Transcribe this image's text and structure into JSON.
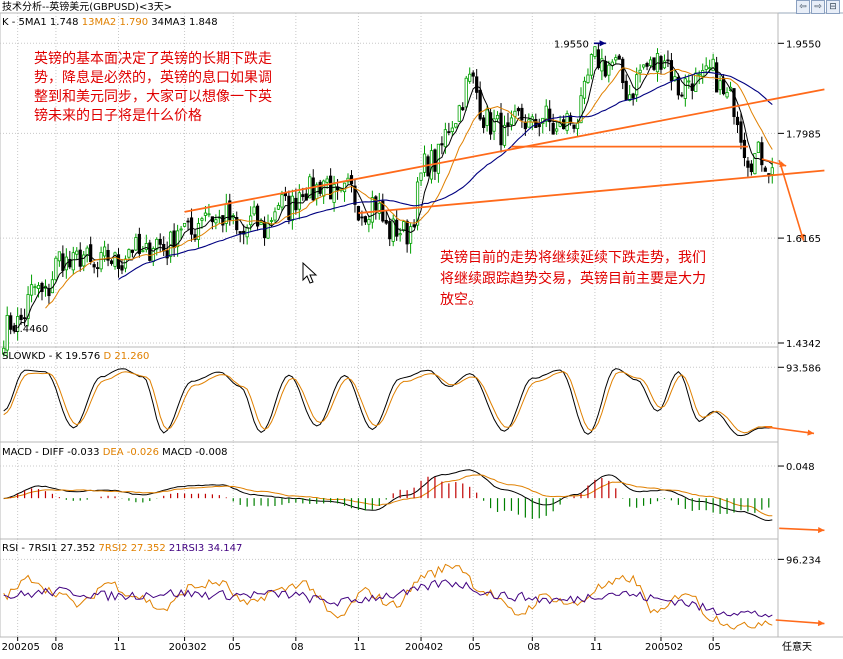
{
  "window_title": "技术分析--英镑美元(GBPUSD)<3天>",
  "nav_buttons": [
    "⇦",
    "⇨",
    "⊟"
  ],
  "colors": {
    "up": "#00a000",
    "down": "#000000",
    "ma1": "#000000",
    "ma2": "#e08000",
    "ma3": "#000080",
    "trend": "#ff6a1a",
    "annotation": "#e00000",
    "k": "#000000",
    "d": "#e08000",
    "diff": "#000000",
    "dea": "#e08000",
    "macd_pos": "#c00000",
    "macd_neg": "#008000",
    "rsi1": "#000000",
    "rsi2": "#e08000",
    "rsi3": "#400080"
  },
  "annotations": {
    "top_left": [
      "英镑的基本面决定了英镑的长期下跌走",
      "势，降息是必然的，英镑的息口如果调",
      "整到和美元同步，大家可以想像一下英",
      "镑未来的日子将是什么价格"
    ],
    "bottom_right": [
      "英镑目前的走势将继续延续下跌走势，我们",
      "将继续跟踪趋势交易，英镑目前主要是大力",
      "放空。"
    ]
  },
  "chart_data": [
    {
      "type": "candlestick",
      "panel": "price",
      "header": {
        "prefix": "K",
        "items": [
          {
            "label": "5MA1",
            "value": "1.748",
            "color": "#000000"
          },
          {
            "label": "13MA2",
            "value": "1.790",
            "color": "#e08000"
          },
          {
            "label": "34MA3",
            "value": "1.848",
            "color": "#000000"
          }
        ]
      },
      "ylim": [
        1.4342,
        1.9955
      ],
      "yticks": [
        "1.9550",
        "1.7985",
        "1.6165",
        "1.4342"
      ],
      "ytick_values": [
        1.955,
        1.7985,
        1.6165,
        1.4342
      ],
      "price_labels": [
        {
          "text": "1.9550",
          "value": 1.955,
          "x_index": 172
        },
        {
          "text": "1.4460",
          "value": 1.446,
          "x_index": 1
        }
      ],
      "close_anchors": [
        [
          0,
          1.45
        ],
        [
          10,
          1.52
        ],
        [
          18,
          1.58
        ],
        [
          28,
          1.57
        ],
        [
          36,
          1.59
        ],
        [
          44,
          1.6
        ],
        [
          52,
          1.63
        ],
        [
          60,
          1.66
        ],
        [
          68,
          1.63
        ],
        [
          74,
          1.64
        ],
        [
          82,
          1.68
        ],
        [
          90,
          1.71
        ],
        [
          98,
          1.69
        ],
        [
          106,
          1.67
        ],
        [
          114,
          1.62
        ],
        [
          124,
          1.76
        ],
        [
          134,
          1.88
        ],
        [
          142,
          1.8
        ],
        [
          152,
          1.82
        ],
        [
          162,
          1.81
        ],
        [
          172,
          1.93
        ],
        [
          180,
          1.88
        ],
        [
          188,
          1.93
        ],
        [
          196,
          1.88
        ],
        [
          202,
          1.9
        ],
        [
          208,
          1.87
        ],
        [
          214,
          1.77
        ],
        [
          220,
          1.74
        ]
      ],
      "trend_lines": [
        {
          "from": [
            52,
            1.662
          ],
          "to": [
            236,
            1.875
          ]
        },
        {
          "from": [
            102,
            1.66
          ],
          "to": [
            236,
            1.734
          ]
        },
        {
          "from": [
            146,
            1.7755
          ],
          "to": [
            214,
            1.7755
          ]
        }
      ],
      "trend_arrows": [
        {
          "from": [
            218,
            1.754
          ],
          "to": [
            225,
            1.742
          ]
        },
        {
          "from": [
            223,
            1.752
          ],
          "to": [
            230,
            1.612
          ]
        }
      ]
    },
    {
      "type": "line",
      "panel": "slowkd",
      "header": {
        "prefix": "SLOWKD",
        "items": [
          {
            "label": "K",
            "value": "19.576",
            "color": "#000000"
          },
          {
            "label": "D",
            "value": "21.260",
            "color": "#e08000"
          }
        ]
      },
      "ylim": [
        5,
        100
      ],
      "yticks": [
        "93.586"
      ],
      "ytick_values": [
        93.586
      ],
      "series": [
        {
          "name": "K",
          "anchors": [
            [
              0,
              40
            ],
            [
              6,
              90
            ],
            [
              12,
              88
            ],
            [
              20,
              20
            ],
            [
              28,
              82
            ],
            [
              34,
              92
            ],
            [
              40,
              82
            ],
            [
              46,
              14
            ],
            [
              54,
              76
            ],
            [
              62,
              88
            ],
            [
              68,
              70
            ],
            [
              74,
              14
            ],
            [
              82,
              84
            ],
            [
              90,
              22
            ],
            [
              98,
              84
            ],
            [
              106,
              18
            ],
            [
              114,
              80
            ],
            [
              122,
              90
            ],
            [
              128,
              70
            ],
            [
              134,
              86
            ],
            [
              144,
              16
            ],
            [
              152,
              80
            ],
            [
              160,
              90
            ],
            [
              168,
              12
            ],
            [
              176,
              92
            ],
            [
              182,
              78
            ],
            [
              188,
              40
            ],
            [
              194,
              88
            ],
            [
              200,
              28
            ],
            [
              204,
              40
            ],
            [
              212,
              10
            ],
            [
              218,
              19.576
            ]
          ]
        },
        {
          "name": "D",
          "anchors": [
            [
              0,
              36
            ],
            [
              7,
              86
            ],
            [
              13,
              86
            ],
            [
              21,
              24
            ],
            [
              29,
              78
            ],
            [
              35,
              88
            ],
            [
              41,
              82
            ],
            [
              47,
              18
            ],
            [
              55,
              72
            ],
            [
              63,
              85
            ],
            [
              69,
              70
            ],
            [
              75,
              18
            ],
            [
              83,
              80
            ],
            [
              91,
              26
            ],
            [
              99,
              80
            ],
            [
              107,
              22
            ],
            [
              115,
              76
            ],
            [
              123,
              86
            ],
            [
              129,
              72
            ],
            [
              135,
              82
            ],
            [
              145,
              20
            ],
            [
              153,
              76
            ],
            [
              161,
              88
            ],
            [
              169,
              16
            ],
            [
              177,
              88
            ],
            [
              183,
              80
            ],
            [
              189,
              44
            ],
            [
              195,
              84
            ],
            [
              201,
              32
            ],
            [
              205,
              40
            ],
            [
              213,
              14
            ],
            [
              218,
              21.26
            ]
          ]
        }
      ],
      "trend_arrows": [
        {
          "from": [
            219,
            21
          ],
          "to": [
            233,
            13
          ]
        }
      ]
    },
    {
      "type": "line+bar",
      "panel": "macd",
      "header": {
        "prefix": "MACD",
        "items": [
          {
            "label": "DIFF",
            "value": "-0.033",
            "color": "#000000"
          },
          {
            "label": "DEA",
            "value": "-0.026",
            "color": "#e08000"
          },
          {
            "label": "MACD",
            "value": "-0.008",
            "color": "#000000"
          }
        ]
      },
      "ylim": [
        -0.058,
        0.06
      ],
      "yticks": [
        "0.048"
      ],
      "ytick_values": [
        0.048
      ],
      "series": [
        {
          "name": "DIFF",
          "anchors": [
            [
              0,
              0.0
            ],
            [
              10,
              0.018
            ],
            [
              20,
              0.01
            ],
            [
              30,
              0.012
            ],
            [
              40,
              0.005
            ],
            [
              52,
              0.018
            ],
            [
              62,
              0.02
            ],
            [
              72,
              0.005
            ],
            [
              82,
              0.0
            ],
            [
              94,
              -0.005
            ],
            [
              106,
              -0.018
            ],
            [
              116,
              0.005
            ],
            [
              126,
              0.035
            ],
            [
              134,
              0.042
            ],
            [
              144,
              0.012
            ],
            [
              156,
              -0.01
            ],
            [
              164,
              0.005
            ],
            [
              174,
              0.035
            ],
            [
              182,
              0.01
            ],
            [
              190,
              0.012
            ],
            [
              200,
              -0.005
            ],
            [
              212,
              -0.02
            ],
            [
              220,
              -0.033
            ]
          ]
        },
        {
          "name": "DEA",
          "anchors": [
            [
              0,
              0.0
            ],
            [
              12,
              0.012
            ],
            [
              22,
              0.012
            ],
            [
              32,
              0.01
            ],
            [
              42,
              0.008
            ],
            [
              54,
              0.015
            ],
            [
              64,
              0.018
            ],
            [
              74,
              0.01
            ],
            [
              84,
              0.003
            ],
            [
              96,
              -0.002
            ],
            [
              108,
              -0.01
            ],
            [
              118,
              0.0
            ],
            [
              128,
              0.025
            ],
            [
              136,
              0.035
            ],
            [
              146,
              0.02
            ],
            [
              158,
              0.002
            ],
            [
              166,
              0.004
            ],
            [
              176,
              0.024
            ],
            [
              184,
              0.016
            ],
            [
              192,
              0.012
            ],
            [
              202,
              0.003
            ],
            [
              214,
              -0.012
            ],
            [
              220,
              -0.026
            ]
          ]
        }
      ],
      "trend_arrows": [
        {
          "from": [
            223,
            -0.045
          ],
          "to": [
            236,
            -0.048
          ]
        }
      ]
    },
    {
      "type": "line",
      "panel": "rsi",
      "header": {
        "prefix": "RSI",
        "items": [
          {
            "label": "7RSI1",
            "value": "27.352",
            "color": "#000000"
          },
          {
            "label": "7RSI2",
            "value": "27.352",
            "color": "#e08000"
          },
          {
            "label": "21RSI3",
            "value": "34.147",
            "color": "#400080"
          }
        ]
      },
      "ylim": [
        10,
        100
      ],
      "yticks": [
        "96.234"
      ],
      "ytick_values": [
        96.234
      ],
      "series": [
        {
          "name": "7RSI2",
          "anchors": [
            [
              0,
              55
            ],
            [
              8,
              75
            ],
            [
              14,
              60
            ],
            [
              22,
              45
            ],
            [
              30,
              70
            ],
            [
              38,
              55
            ],
            [
              46,
              40
            ],
            [
              54,
              65
            ],
            [
              62,
              70
            ],
            [
              70,
              45
            ],
            [
              78,
              60
            ],
            [
              86,
              70
            ],
            [
              96,
              30
            ],
            [
              104,
              60
            ],
            [
              112,
              45
            ],
            [
              122,
              80
            ],
            [
              130,
              90
            ],
            [
              138,
              60
            ],
            [
              148,
              35
            ],
            [
              156,
              55
            ],
            [
              164,
              45
            ],
            [
              172,
              65
            ],
            [
              180,
              75
            ],
            [
              188,
              35
            ],
            [
              196,
              60
            ],
            [
              204,
              30
            ],
            [
              212,
              20
            ],
            [
              220,
              27.352
            ]
          ]
        },
        {
          "name": "21RSI3",
          "anchors": [
            [
              0,
              55
            ],
            [
              16,
              60
            ],
            [
              32,
              55
            ],
            [
              48,
              58
            ],
            [
              64,
              56
            ],
            [
              80,
              57
            ],
            [
              96,
              48
            ],
            [
              112,
              56
            ],
            [
              128,
              70
            ],
            [
              144,
              55
            ],
            [
              160,
              50
            ],
            [
              176,
              58
            ],
            [
              192,
              50
            ],
            [
              206,
              38
            ],
            [
              220,
              34.147
            ]
          ]
        }
      ],
      "trend_arrows": [
        {
          "from": [
            222,
            28
          ],
          "to": [
            236,
            24
          ]
        }
      ]
    }
  ],
  "x_axis": {
    "labels": [
      {
        "text": "200205",
        "index": 4
      },
      {
        "text": "08",
        "index": 15
      },
      {
        "text": "11",
        "index": 33
      },
      {
        "text": "200302",
        "index": 52
      },
      {
        "text": "05",
        "index": 66
      },
      {
        "text": "08",
        "index": 84
      },
      {
        "text": "11",
        "index": 102
      },
      {
        "text": "200402",
        "index": 120
      },
      {
        "text": "05",
        "index": 135
      },
      {
        "text": "08",
        "index": 152
      },
      {
        "text": "11",
        "index": 170
      },
      {
        "text": "200502",
        "index": 189
      },
      {
        "text": "05",
        "index": 204
      }
    ],
    "right_label": "任意天",
    "bar_count": 222
  }
}
